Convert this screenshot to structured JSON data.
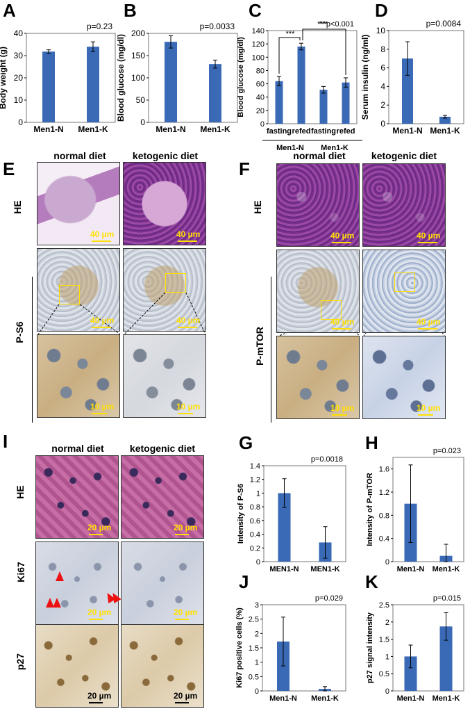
{
  "panels": {
    "A": "A",
    "B": "B",
    "C": "C",
    "D": "D",
    "E": "E",
    "F": "F",
    "I": "I",
    "G": "G",
    "H": "H",
    "J": "J",
    "K": "K"
  },
  "col_heads": {
    "normal": "normal diet",
    "ketogenic": "ketogenic diet"
  },
  "row_labels": {
    "he": "HE",
    "ps6": "P-S6",
    "pmtor": "P-mTOR",
    "ki67": "Ki67",
    "p27": "p27"
  },
  "scalebars": {
    "s40": "40 µm",
    "s10": "10 µm",
    "s20": "20 µm"
  },
  "bar_color": "#3a6ab5",
  "chart_data": [
    {
      "id": "A",
      "type": "bar",
      "categories": [
        "Men1-N",
        "Men1-K"
      ],
      "values": [
        31.8,
        34.0
      ],
      "errors": [
        0.8,
        2.2
      ],
      "ylabel": "Body weight (g)",
      "ylim": [
        0,
        40
      ],
      "yticks": [
        0,
        10,
        20,
        30,
        40
      ],
      "pvalue": "p=0.23"
    },
    {
      "id": "B",
      "type": "bar",
      "categories": [
        "Men1-N",
        "Men1-K"
      ],
      "values": [
        181,
        131
      ],
      "errors": [
        14,
        9
      ],
      "ylabel": "Blood glucose (mg/dl)",
      "ylim": [
        0,
        200
      ],
      "yticks": [
        0,
        50,
        100,
        150,
        200
      ],
      "pvalue": "p=0.0033"
    },
    {
      "id": "C",
      "type": "bar",
      "categories": [
        "fasting",
        "refed",
        "fasting",
        "refed"
      ],
      "groups": [
        "Men1-N",
        "Men1-K"
      ],
      "values": [
        64,
        116,
        51,
        62
      ],
      "errors": [
        7,
        5,
        5,
        7
      ],
      "ylabel": "Blood glucose (mg/dl)",
      "ylim": [
        0,
        140
      ],
      "yticks": [
        0,
        20,
        40,
        60,
        80,
        100,
        120,
        140
      ],
      "pvalue": "***p<0.001",
      "sig": "***"
    },
    {
      "id": "D",
      "type": "bar",
      "categories": [
        "Men1-N",
        "Men1-K"
      ],
      "values": [
        7.0,
        0.75
      ],
      "errors": [
        1.8,
        0.15
      ],
      "ylabel": "Serum insulin (ng/ml)",
      "ylim": [
        0,
        10
      ],
      "yticks": [
        0,
        2,
        4,
        6,
        8,
        10
      ],
      "pvalue": "p=0.0084"
    },
    {
      "id": "G",
      "type": "bar",
      "categories": [
        "MEN1-N",
        "MEN1-K"
      ],
      "values": [
        1.0,
        0.28
      ],
      "errors": [
        0.21,
        0.23
      ],
      "ylabel": "Intensity of P-S6",
      "ylim": [
        0,
        1.4
      ],
      "yticks": [
        "0",
        "0.2",
        "0.4",
        "0.6",
        "0.8",
        "1",
        "1.2",
        "1.4"
      ],
      "pvalue": "p=0.0018"
    },
    {
      "id": "H",
      "type": "bar",
      "categories": [
        "Men1-N",
        "Men1-K"
      ],
      "values": [
        1.0,
        0.1
      ],
      "errors": [
        0.67,
        0.2
      ],
      "ylabel": "Intensity of P-mTOR",
      "ylim": [
        0,
        1.8
      ],
      "yticks": [
        "0",
        "0.4",
        "0.8",
        "1.2",
        "1.6"
      ],
      "pvalue": "p=0.023"
    },
    {
      "id": "J",
      "type": "bar",
      "categories": [
        "Men1-N",
        "Men1-K"
      ],
      "values": [
        1.72,
        0.07
      ],
      "errors": [
        0.85,
        0.08
      ],
      "ylabel": "Ki67 positive cells (%)",
      "ylim": [
        0,
        3
      ],
      "yticks": [
        "0",
        "0.5",
        "1",
        "1.5",
        "2",
        "2.5",
        "3"
      ],
      "pvalue": "p=0.029"
    },
    {
      "id": "K",
      "type": "bar",
      "categories": [
        "Men1-N",
        "Men1-K"
      ],
      "values": [
        1.0,
        1.87
      ],
      "errors": [
        0.33,
        0.4
      ],
      "ylabel": "p27 signal intensity",
      "ylim": [
        0,
        2.5
      ],
      "yticks": [
        "0",
        "0.5",
        "1",
        "1.5",
        "2",
        "2.5"
      ],
      "pvalue": "p=0.015"
    }
  ]
}
